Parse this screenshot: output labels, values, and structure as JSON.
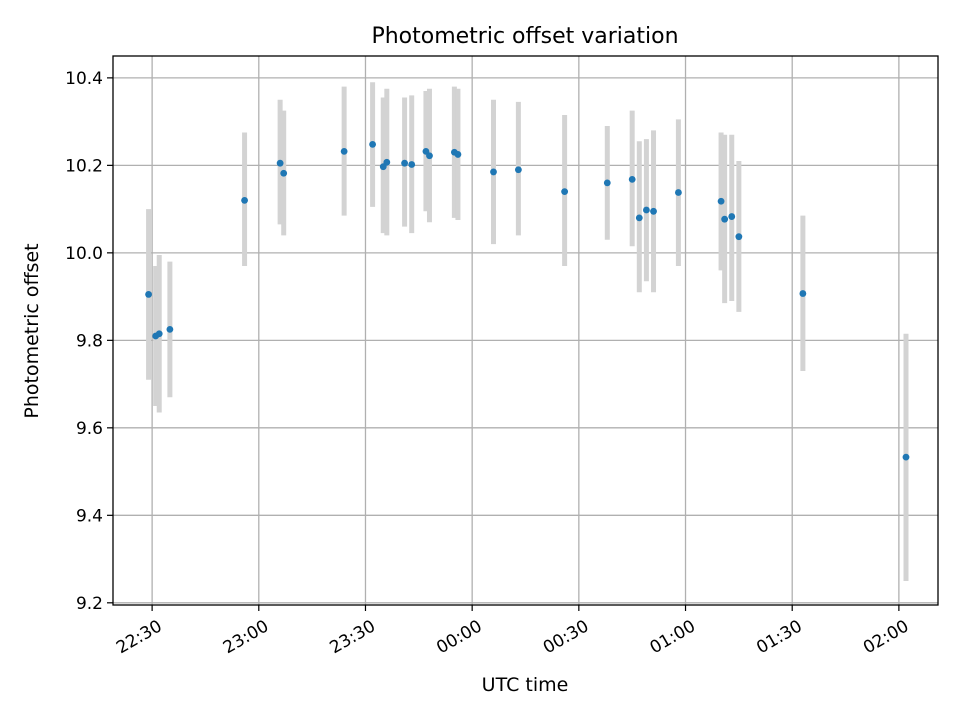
{
  "chart_data": {
    "type": "scatter",
    "title": "Photometric offset variation",
    "xlabel": "UTC time",
    "ylabel": "Photometric offset",
    "grid": true,
    "xlim": [
      "22:19",
      "02:11"
    ],
    "ylim": [
      9.195,
      10.45
    ],
    "x_ticks": [
      "22:30",
      "23:00",
      "23:30",
      "00:00",
      "00:30",
      "01:00",
      "01:30",
      "02:00"
    ],
    "y_ticks": [
      "9.2",
      "9.4",
      "9.6",
      "9.8",
      "10.0",
      "10.2",
      "10.4"
    ],
    "colors": {
      "point": "#1f77b4",
      "error_bar": "#d3d3d3",
      "grid": "#b0b0b0"
    },
    "series": [
      {
        "x": [
          "22:29",
          "22:31",
          "22:32",
          "22:35",
          "22:56",
          "23:06",
          "23:07",
          "23:24",
          "23:32",
          "23:35",
          "23:36",
          "23:41",
          "23:43",
          "23:47",
          "23:48",
          "23:55",
          "23:56",
          "00:06",
          "00:13",
          "00:26",
          "00:38",
          "00:45",
          "00:47",
          "00:49",
          "00:51",
          "00:58",
          "01:10",
          "01:11",
          "01:13",
          "01:15",
          "01:33",
          "02:02"
        ],
        "y": [
          9.905,
          9.81,
          9.815,
          9.825,
          10.12,
          10.205,
          10.182,
          10.232,
          10.248,
          10.197,
          10.207,
          10.205,
          10.202,
          10.232,
          10.222,
          10.23,
          10.225,
          10.185,
          10.19,
          10.14,
          10.16,
          10.168,
          10.08,
          10.098,
          10.095,
          10.138,
          10.118,
          10.077,
          10.083,
          10.037,
          9.907,
          9.533
        ],
        "yerr_low": [
          9.71,
          9.65,
          9.635,
          9.67,
          9.97,
          10.065,
          10.04,
          10.085,
          10.105,
          10.045,
          10.04,
          10.06,
          10.045,
          10.095,
          10.07,
          10.08,
          10.075,
          10.02,
          10.04,
          9.97,
          10.03,
          10.015,
          9.91,
          9.935,
          9.91,
          9.97,
          9.96,
          9.885,
          9.89,
          9.865,
          9.73,
          9.25
        ],
        "yerr_high": [
          10.1,
          9.97,
          9.995,
          9.98,
          10.275,
          10.35,
          10.325,
          10.38,
          10.39,
          10.355,
          10.375,
          10.355,
          10.36,
          10.37,
          10.375,
          10.38,
          10.375,
          10.35,
          10.345,
          10.315,
          10.29,
          10.325,
          10.255,
          10.26,
          10.28,
          10.305,
          10.275,
          10.27,
          10.27,
          10.21,
          10.085,
          9.815
        ]
      }
    ]
  }
}
